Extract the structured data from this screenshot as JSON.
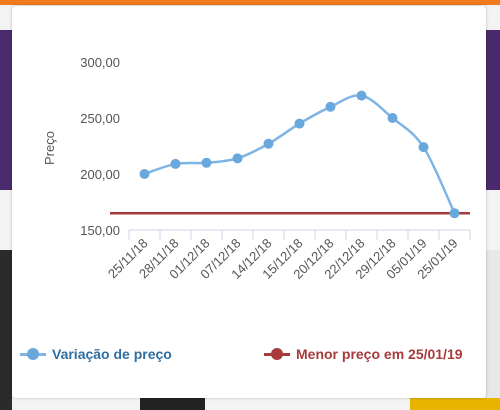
{
  "chart_data": {
    "type": "line",
    "title": "",
    "xlabel": "",
    "ylabel": "Preço",
    "ylim": [
      150,
      300
    ],
    "yticks": [
      "150,00",
      "200,00",
      "250,00",
      "300,00"
    ],
    "categories": [
      "25/11/18",
      "28/11/18",
      "01/12/18",
      "07/12/18",
      "14/12/18",
      "15/12/18",
      "20/12/18",
      "22/12/18",
      "29/12/18",
      "05/01/19",
      "25/01/19"
    ],
    "series": [
      {
        "name": "Variação de preço",
        "color": "#7eb5e5",
        "marker_color": "#6aa7dd",
        "values": [
          200,
          209,
          210,
          214,
          227,
          245,
          260,
          270,
          250,
          224,
          165
        ]
      },
      {
        "name": "Menor preço em 25/01/19",
        "color": "#a73b3b",
        "values": [
          165,
          165,
          165,
          165,
          165,
          165,
          165,
          165,
          165,
          165,
          165
        ]
      }
    ],
    "grid": false,
    "legend_position": "bottom"
  },
  "legend": {
    "series_label_color": "#2f6ea3",
    "min_label_color": "#a73b3b"
  }
}
